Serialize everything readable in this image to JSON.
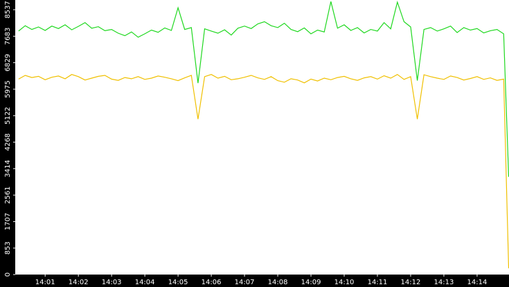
{
  "chart_data": {
    "type": "line",
    "x": [
      0.2,
      0.4,
      0.6,
      0.8,
      1.0,
      1.2,
      1.4,
      1.6,
      1.8,
      2.0,
      2.2,
      2.4,
      2.6,
      2.8,
      3.0,
      3.2,
      3.4,
      3.6,
      3.8,
      4.0,
      4.2,
      4.4,
      4.6,
      4.8,
      5.0,
      5.2,
      5.4,
      5.6,
      5.8,
      6.0,
      6.2,
      6.4,
      6.6,
      6.8,
      7.0,
      7.2,
      7.4,
      7.6,
      7.8,
      8.0,
      8.2,
      8.4,
      8.6,
      8.8,
      9.0,
      9.2,
      9.4,
      9.6,
      9.8,
      10.0,
      10.2,
      10.4,
      10.6,
      10.8,
      11.0,
      11.2,
      11.4,
      11.6,
      11.8,
      12.0,
      12.2,
      12.4,
      12.6,
      12.8,
      13.0,
      13.2,
      13.4,
      13.6,
      13.8,
      14.0,
      14.2,
      14.4,
      14.6,
      14.8,
      14.95
    ],
    "series": [
      {
        "color": "#1fd81f",
        "values": [
          7850,
          8020,
          7900,
          7980,
          7870,
          8010,
          7930,
          8050,
          7890,
          8000,
          8120,
          7940,
          7990,
          7860,
          7900,
          7780,
          7700,
          7820,
          7650,
          7760,
          7880,
          7810,
          7950,
          7870,
          8600,
          7900,
          7960,
          6170,
          7920,
          7850,
          7780,
          7890,
          7720,
          7940,
          8010,
          7930,
          8080,
          8150,
          8020,
          7960,
          8100,
          7900,
          7830,
          7950,
          7760,
          7880,
          7820,
          8800,
          7940,
          8050,
          7870,
          7960,
          7790,
          7900,
          7850,
          8120,
          7920,
          8780,
          8150,
          7980,
          6250,
          7900,
          7960,
          7850,
          7920,
          8010,
          7800,
          7960,
          7880,
          7930,
          7790,
          7860,
          7900,
          7760,
          3150
        ]
      },
      {
        "color": "#f0c000",
        "values": [
          6300,
          6420,
          6350,
          6390,
          6280,
          6360,
          6400,
          6310,
          6450,
          6380,
          6270,
          6330,
          6390,
          6420,
          6300,
          6260,
          6350,
          6310,
          6380,
          6290,
          6330,
          6400,
          6360,
          6310,
          6250,
          6340,
          6420,
          5010,
          6380,
          6450,
          6330,
          6390,
          6280,
          6310,
          6360,
          6420,
          6340,
          6290,
          6380,
          6250,
          6200,
          6310,
          6270,
          6180,
          6300,
          6240,
          6330,
          6280,
          6350,
          6390,
          6310,
          6260,
          6340,
          6380,
          6300,
          6410,
          6330,
          6450,
          6290,
          6380,
          5010,
          6440,
          6380,
          6330,
          6290,
          6400,
          6350,
          6270,
          6320,
          6380,
          6290,
          6340,
          6260,
          6300,
          200
        ]
      }
    ],
    "xlim": [
      0.1,
      14.96
    ],
    "xticks": [
      {
        "value": 1,
        "label": "14:01"
      },
      {
        "value": 2,
        "label": "14:02"
      },
      {
        "value": 3,
        "label": "14:03"
      },
      {
        "value": 4,
        "label": "14:04"
      },
      {
        "value": 5,
        "label": "14:05"
      },
      {
        "value": 6,
        "label": "14:06"
      },
      {
        "value": 7,
        "label": "14:07"
      },
      {
        "value": 8,
        "label": "14:08"
      },
      {
        "value": 9,
        "label": "14:09"
      },
      {
        "value": 10,
        "label": "14:10"
      },
      {
        "value": 11,
        "label": "14:11"
      },
      {
        "value": 12,
        "label": "14:12"
      },
      {
        "value": 13,
        "label": "14:13"
      },
      {
        "value": 14,
        "label": "14:14"
      }
    ],
    "ylim": [
      0,
      8850
    ],
    "yticks": [
      0,
      853,
      1707,
      2561,
      3414,
      4268,
      5122,
      5975,
      6829,
      7683,
      8537
    ],
    "grid": false
  }
}
